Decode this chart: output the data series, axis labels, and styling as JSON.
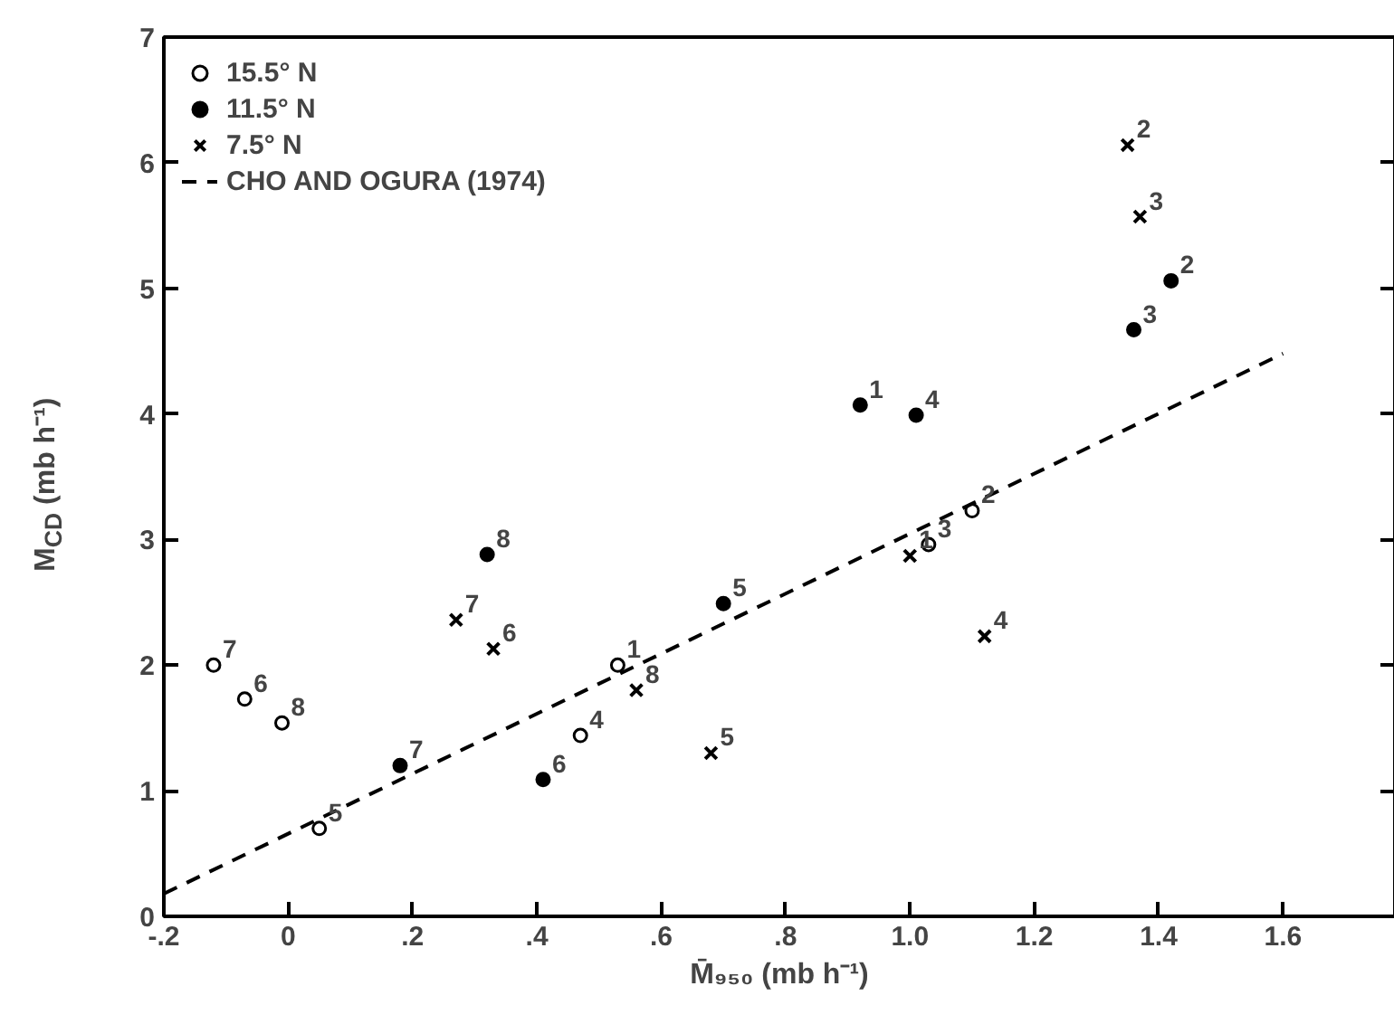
{
  "chart_data": {
    "type": "scatter",
    "xlabel": "M̄₉₅₀ (mb h⁻¹)",
    "ylabel": "M$_{CD}$ (mb h⁻¹)",
    "xlim": [
      -0.2,
      1.78
    ],
    "ylim": [
      0,
      7
    ],
    "xticks": [
      {
        "value": -0.2,
        "label": "-.2"
      },
      0,
      {
        "value": 0.2,
        "label": ".2"
      },
      {
        "value": 0.4,
        "label": ".4"
      },
      {
        "value": 0.6,
        "label": ".6"
      },
      {
        "value": 0.8,
        "label": ".8"
      },
      {
        "value": 1.0,
        "label": "1.0"
      },
      {
        "value": 1.2,
        "label": "1.2"
      },
      {
        "value": 1.4,
        "label": "1.4"
      },
      {
        "value": 1.6,
        "label": "1.6"
      }
    ],
    "yticks": [
      0,
      1,
      2,
      3,
      4,
      5,
      6,
      7
    ],
    "grid": false,
    "legend": "top left",
    "series": [
      {
        "name": "15.5° N",
        "color": "#000000",
        "marker": "open circle",
        "x": [
          0.53,
          1.1,
          1.03,
          0.47,
          0.05,
          -0.07,
          -0.12,
          -0.01
        ],
        "values": [
          2.0,
          3.23,
          2.96,
          1.44,
          0.7,
          1.73,
          2.0,
          1.54
        ]
      },
      {
        "name": "11.5° N",
        "color": "#000000",
        "marker": "circle",
        "x": [
          0.92,
          1.42,
          1.36,
          1.01,
          0.7,
          0.41,
          0.18,
          0.32
        ],
        "values": [
          4.07,
          5.06,
          4.67,
          3.99,
          2.49,
          1.09,
          1.2,
          2.88
        ]
      },
      {
        "name": "7.5° N",
        "color": "#000000",
        "marker": "cross",
        "x": [
          1.0,
          1.35,
          1.37,
          1.12,
          0.68,
          0.33,
          0.27,
          0.56
        ],
        "values": [
          2.87,
          6.14,
          5.57,
          2.23,
          1.3,
          2.13,
          2.36,
          1.8
        ]
      },
      {
        "name": "CHO AND OGURA (1974)",
        "type": "line",
        "line_style": "dashed",
        "color": "#000000",
        "x": [
          -0.2,
          1.6
        ],
        "values": [
          0.18,
          4.48
        ]
      }
    ],
    "annotations": [
      {
        "text": "1",
        "x": 0.53,
        "y": 2.0
      },
      {
        "text": "2",
        "x": 1.1,
        "y": 3.23
      },
      {
        "text": "3",
        "x": 1.03,
        "y": 2.96
      },
      {
        "text": "4",
        "x": 0.47,
        "y": 1.44
      },
      {
        "text": "5",
        "x": 0.05,
        "y": 0.7
      },
      {
        "text": "6",
        "x": -0.07,
        "y": 1.73
      },
      {
        "text": "7",
        "x": -0.12,
        "y": 2.0
      },
      {
        "text": "8",
        "x": -0.01,
        "y": 1.54
      },
      {
        "text": "1",
        "x": 0.92,
        "y": 4.07
      },
      {
        "text": "2",
        "x": 1.42,
        "y": 5.06
      },
      {
        "text": "3",
        "x": 1.36,
        "y": 4.67
      },
      {
        "text": "4",
        "x": 1.01,
        "y": 3.99
      },
      {
        "text": "5",
        "x": 0.7,
        "y": 2.49
      },
      {
        "text": "6",
        "x": 0.41,
        "y": 1.09
      },
      {
        "text": "7",
        "x": 0.18,
        "y": 1.2
      },
      {
        "text": "8",
        "x": 0.32,
        "y": 2.88
      },
      {
        "text": "1",
        "x": 1.0,
        "y": 2.87
      },
      {
        "text": "2",
        "x": 1.35,
        "y": 6.14
      },
      {
        "text": "3",
        "x": 1.37,
        "y": 5.57
      },
      {
        "text": "4",
        "x": 1.12,
        "y": 2.23
      },
      {
        "text": "5",
        "x": 0.68,
        "y": 1.3
      },
      {
        "text": "6",
        "x": 0.33,
        "y": 2.13
      },
      {
        "text": "7",
        "x": 0.27,
        "y": 2.36
      },
      {
        "text": "8",
        "x": 0.56,
        "y": 1.8
      }
    ]
  }
}
